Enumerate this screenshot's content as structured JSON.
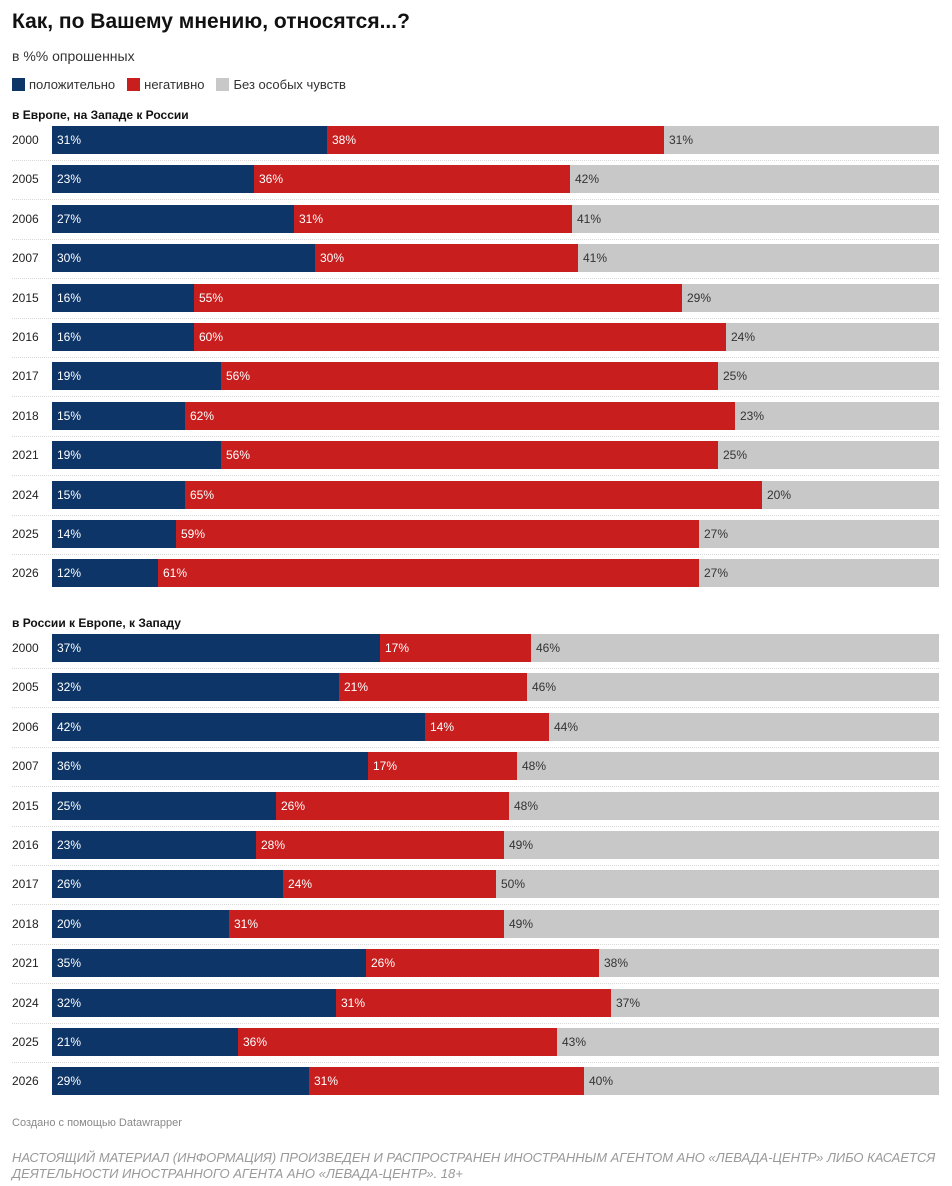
{
  "header": {
    "title": "Как, по Вашему мнению, относятся...?",
    "subtitle": "в %% опрошенных"
  },
  "legend": {
    "items": [
      {
        "label": "положительно",
        "color": "#0d3567"
      },
      {
        "label": "негативно",
        "color": "#c81e1e"
      },
      {
        "label": "Без особых чувств",
        "color": "#c8c8c8"
      }
    ]
  },
  "chart_data": [
    {
      "type": "bar",
      "orientation": "horizontal-stacked",
      "title": "в Европе, на Западе к России",
      "categories": [
        "2000",
        "2005",
        "2006",
        "2007",
        "2015",
        "2016",
        "2017",
        "2018",
        "2021",
        "2024",
        "2025",
        "2026"
      ],
      "series": [
        {
          "name": "положительно",
          "color": "#0d3567",
          "values": [
            31,
            23,
            27,
            30,
            16,
            16,
            19,
            15,
            19,
            15,
            14,
            12
          ]
        },
        {
          "name": "негативно",
          "color": "#c81e1e",
          "values": [
            38,
            36,
            31,
            30,
            55,
            60,
            56,
            62,
            56,
            65,
            59,
            61
          ]
        },
        {
          "name": "Без особых чувств",
          "color": "#c8c8c8",
          "values": [
            31,
            42,
            41,
            41,
            29,
            24,
            25,
            23,
            25,
            20,
            27,
            27
          ]
        }
      ],
      "xlim": [
        0,
        100
      ],
      "unit": "%"
    },
    {
      "type": "bar",
      "orientation": "horizontal-stacked",
      "title": "в России к Европе, к Западу",
      "categories": [
        "2000",
        "2005",
        "2006",
        "2007",
        "2015",
        "2016",
        "2017",
        "2018",
        "2021",
        "2024",
        "2025",
        "2026"
      ],
      "series": [
        {
          "name": "положительно",
          "color": "#0d3567",
          "values": [
            37,
            32,
            42,
            36,
            25,
            23,
            26,
            20,
            35,
            32,
            21,
            29
          ]
        },
        {
          "name": "негативно",
          "color": "#c81e1e",
          "values": [
            17,
            21,
            14,
            17,
            26,
            28,
            24,
            31,
            26,
            31,
            36,
            31
          ]
        },
        {
          "name": "Без особых чувств",
          "color": "#c8c8c8",
          "values": [
            46,
            46,
            44,
            48,
            48,
            49,
            50,
            49,
            38,
            37,
            43,
            40
          ]
        }
      ],
      "xlim": [
        0,
        100
      ],
      "unit": "%"
    }
  ],
  "footer": {
    "credit": "Создано с помощью Datawrapper",
    "disclaimer": "НАСТОЯЩИЙ МАТЕРИАЛ (ИНФОРМАЦИЯ) ПРОИЗВЕДЕН И РАСПРОСТРАНЕН ИНОСТРАННЫМ АГЕНТОМ АНО «ЛЕВАДА-ЦЕНТР» ЛИБО КАСАЕТСЯ ДЕЯТЕЛЬНОСТИ ИНОСТРАННОГО АГЕНТА АНО «ЛЕВАДА-ЦЕНТР». 18+"
  }
}
